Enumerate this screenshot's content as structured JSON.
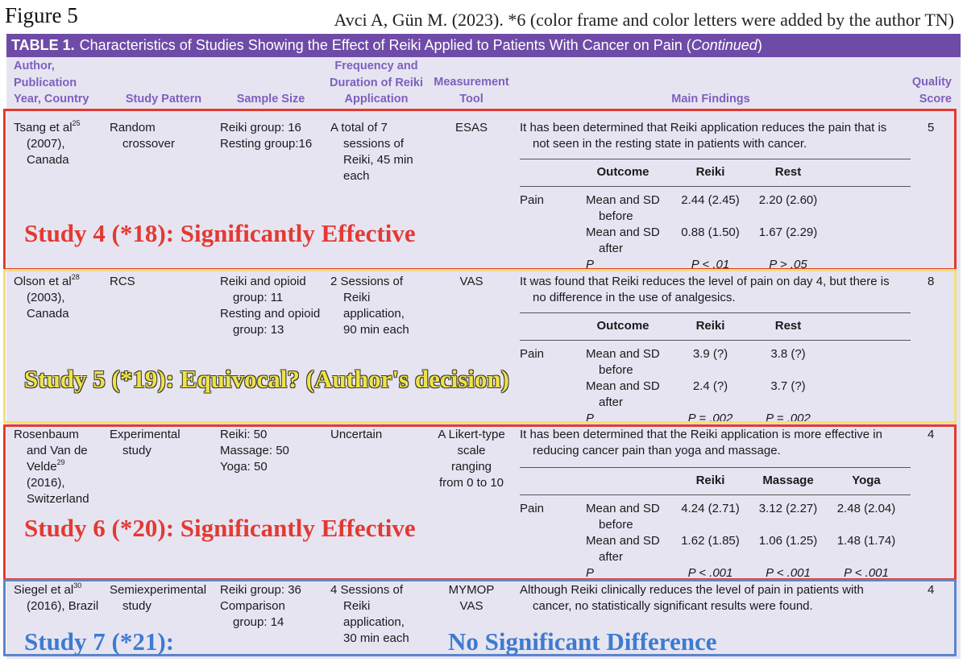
{
  "figure_label": "Figure 5",
  "citation": "Avci A, Gün M. (2023). *6 (color frame and color letters were added by the author TN)",
  "table": {
    "label": "TABLE 1.",
    "title_main": "Characteristics of Studies Showing the Effect of Reiki Applied to Patients With Cancer on Pain (",
    "title_italic": "Continued",
    "title_end": ")",
    "headers": {
      "author": [
        "Author,",
        "Publication",
        "Year, Country"
      ],
      "pattern": "Study Pattern",
      "sample": "Sample Size",
      "frequency": [
        "Frequency and",
        "Duration of Reiki",
        "Application"
      ],
      "tool": [
        "Measurement",
        "Tool"
      ],
      "findings": "Main Findings",
      "quality": [
        "Quality",
        "Score"
      ]
    },
    "rows": [
      {
        "author": [
          "Tsang et al",
          "25",
          "(2007),",
          "Canada"
        ],
        "pattern": [
          "Random",
          "crossover"
        ],
        "sample": [
          "Reiki group: 16",
          "Resting group:16"
        ],
        "frequency": [
          "A total of 7",
          "sessions of",
          "Reiki, 45 min",
          "each"
        ],
        "tool": [
          "ESAS"
        ],
        "finding": [
          "It has been determined that Reiki application reduces the pain that is",
          "not seen in the resting state in patients with cancer."
        ],
        "score": "5",
        "sub_headers": [
          "Outcome",
          "Reiki",
          "Rest"
        ],
        "pain": "Pain",
        "before": [
          "Mean and SD",
          "before",
          "2.44 (2.45)",
          "2.20 (2.60)"
        ],
        "after": [
          "Mean and SD",
          "after",
          "0.88 (1.50)",
          "1.67 (2.29)"
        ],
        "p": [
          "P",
          "P < .01",
          "P > .05"
        ]
      },
      {
        "author": [
          "Olson et al",
          "28",
          "(2003),",
          "Canada"
        ],
        "pattern": [
          "RCS"
        ],
        "sample": [
          "Reiki and opioid",
          "group: 11",
          "Resting and opioid",
          "group: 13"
        ],
        "frequency": [
          "2 Sessions of",
          "Reiki",
          "application,",
          "90 min each"
        ],
        "tool": [
          "VAS"
        ],
        "finding": [
          "It was found that Reiki reduces the level of pain on day 4, but there is",
          "no difference in the use of analgesics."
        ],
        "score": "8",
        "sub_headers": [
          "Outcome",
          "Reiki",
          "Rest"
        ],
        "pain": "Pain",
        "before": [
          "Mean and SD",
          "before",
          "3.9 (?)",
          "3.8 (?)"
        ],
        "after": [
          "Mean and SD",
          "after",
          "2.4 (?)",
          "3.7 (?)"
        ],
        "p": [
          "P",
          "P = .002",
          "P = .002"
        ]
      },
      {
        "author": [
          "Rosenbaum",
          "and Van de",
          "Velde",
          "29",
          "(2016),",
          "Switzerland"
        ],
        "pattern": [
          "Experimental",
          "study"
        ],
        "sample": [
          "Reiki: 50",
          "Massage: 50",
          "Yoga: 50"
        ],
        "frequency": [
          "Uncertain"
        ],
        "tool": [
          "A Likert-type",
          "scale",
          "ranging",
          "from 0 to 10"
        ],
        "finding": [
          "It has been determined that the Reiki application is more effective in",
          "reducing cancer pain than yoga and massage."
        ],
        "score": "4",
        "sub_headers": [
          "Reiki",
          "Massage",
          "Yoga"
        ],
        "pain": "Pain",
        "before": [
          "Mean and SD",
          "before",
          "4.24 (2.71)",
          "3.12 (2.27)",
          "2.48 (2.04)"
        ],
        "after": [
          "Mean and SD",
          "after",
          "1.62 (1.85)",
          "1.06 (1.25)",
          "1.48 (1.74)"
        ],
        "p": [
          "P",
          "P < .001",
          "P < .001",
          "P < .001"
        ]
      },
      {
        "author": [
          "Siegel et al",
          "30",
          "(2016), Brazil"
        ],
        "pattern": [
          "Semiexperimental",
          "study"
        ],
        "sample": [
          "Reiki group: 36",
          "Comparison",
          "group: 14"
        ],
        "frequency": [
          "4 Sessions of",
          "Reiki",
          "application,",
          "30 min each"
        ],
        "tool": [
          "MYMOP",
          "VAS"
        ],
        "finding": [
          "Although Reiki clinically reduces the level of pain in patients with",
          "cancer, no statistically significant results were found."
        ],
        "score": "4"
      }
    ]
  },
  "annotations": {
    "study4": "Study 4 (*18): Significantly Effective",
    "study5": "Study 5 (*19): Equivocal? (Author's decision)",
    "study6": "Study 6 (*20): Significantly Effective",
    "study7": "Study 7 (*21):",
    "study7_result": "No Significant Difference"
  },
  "colors": {
    "header_bar": "#6f4ba8",
    "header_text": "#7f5fbd",
    "sheet_bg": "#e7e4f2",
    "red": "#e23a31",
    "yellow": "#f3e07a",
    "blue": "#5a86c9"
  }
}
